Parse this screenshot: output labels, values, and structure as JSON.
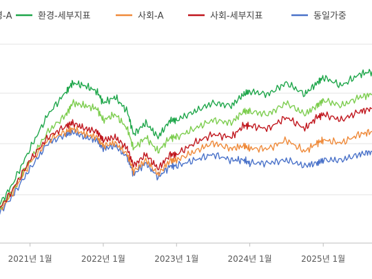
{
  "chart_data": {
    "type": "line",
    "legend_placement": "top",
    "grid": true,
    "x": [
      "2020-07",
      "2020-10",
      "2021-01",
      "2021-04",
      "2021-07",
      "2021-08",
      "2021-10",
      "2021-12",
      "2022-01",
      "2022-03",
      "2022-05",
      "2022-06",
      "2022-08",
      "2022-10",
      "2022-12",
      "2023-01",
      "2023-04",
      "2023-07",
      "2023-10",
      "2023-12",
      "2024-01",
      "2024-04",
      "2024-07",
      "2024-10",
      "2024-12",
      "2025-01",
      "2025-04",
      "2025-07",
      "2025-09"
    ],
    "x_tick_labels": [
      "2021년 1월",
      "2022년 1월",
      "2023년 1월",
      "2024년 1월",
      "2025년 1월"
    ],
    "legend_items": [
      "환경-A",
      "환경-세부지표",
      "사회-A",
      "사회-세부지표",
      "동일가중"
    ],
    "series": [
      {
        "name": "환경-A",
        "color": "#7ccd4e",
        "values": [
          84,
          93,
          104,
          114,
          120,
          124,
          123,
          122,
          118,
          120,
          115,
          108,
          112,
          107,
          112,
          112,
          115,
          118,
          117,
          121,
          121,
          120,
          124,
          120,
          123,
          125,
          123,
          126,
          127
        ]
      },
      {
        "name": "환경-세부지표",
        "color": "#1ea64a",
        "values": [
          85,
          95,
          108,
          120,
          128,
          131,
          130,
          128,
          124,
          126,
          121,
          113,
          117,
          112,
          118,
          118,
          121,
          124,
          123,
          127,
          128,
          127,
          131,
          127,
          131,
          133,
          130,
          134,
          135
        ]
      },
      {
        "name": "사회-A",
        "color": "#ef8a3a",
        "values": [
          83,
          92,
          103,
          111,
          114,
          115,
          113,
          112,
          109,
          110,
          106,
          100,
          104,
          99,
          104,
          104,
          107,
          110,
          108,
          109,
          108,
          108,
          111,
          107,
          110,
          111,
          110,
          113,
          114
        ]
      },
      {
        "name": "사회-세부지표",
        "color": "#c0161d",
        "values": [
          84,
          93,
          104,
          112,
          116,
          117,
          115,
          114,
          111,
          112,
          108,
          102,
          106,
          101,
          106,
          106,
          110,
          113,
          112,
          116,
          116,
          115,
          119,
          115,
          119,
          120,
          118,
          121,
          122
        ]
      },
      {
        "name": "동일가중",
        "color": "#4a72c9",
        "values": [
          83,
          91,
          101,
          110,
          113,
          114,
          112,
          111,
          108,
          109,
          105,
          99,
          103,
          98,
          102,
          102,
          104,
          106,
          104,
          104,
          103,
          103,
          104,
          102,
          103,
          104,
          104,
          106,
          107
        ]
      }
    ]
  }
}
